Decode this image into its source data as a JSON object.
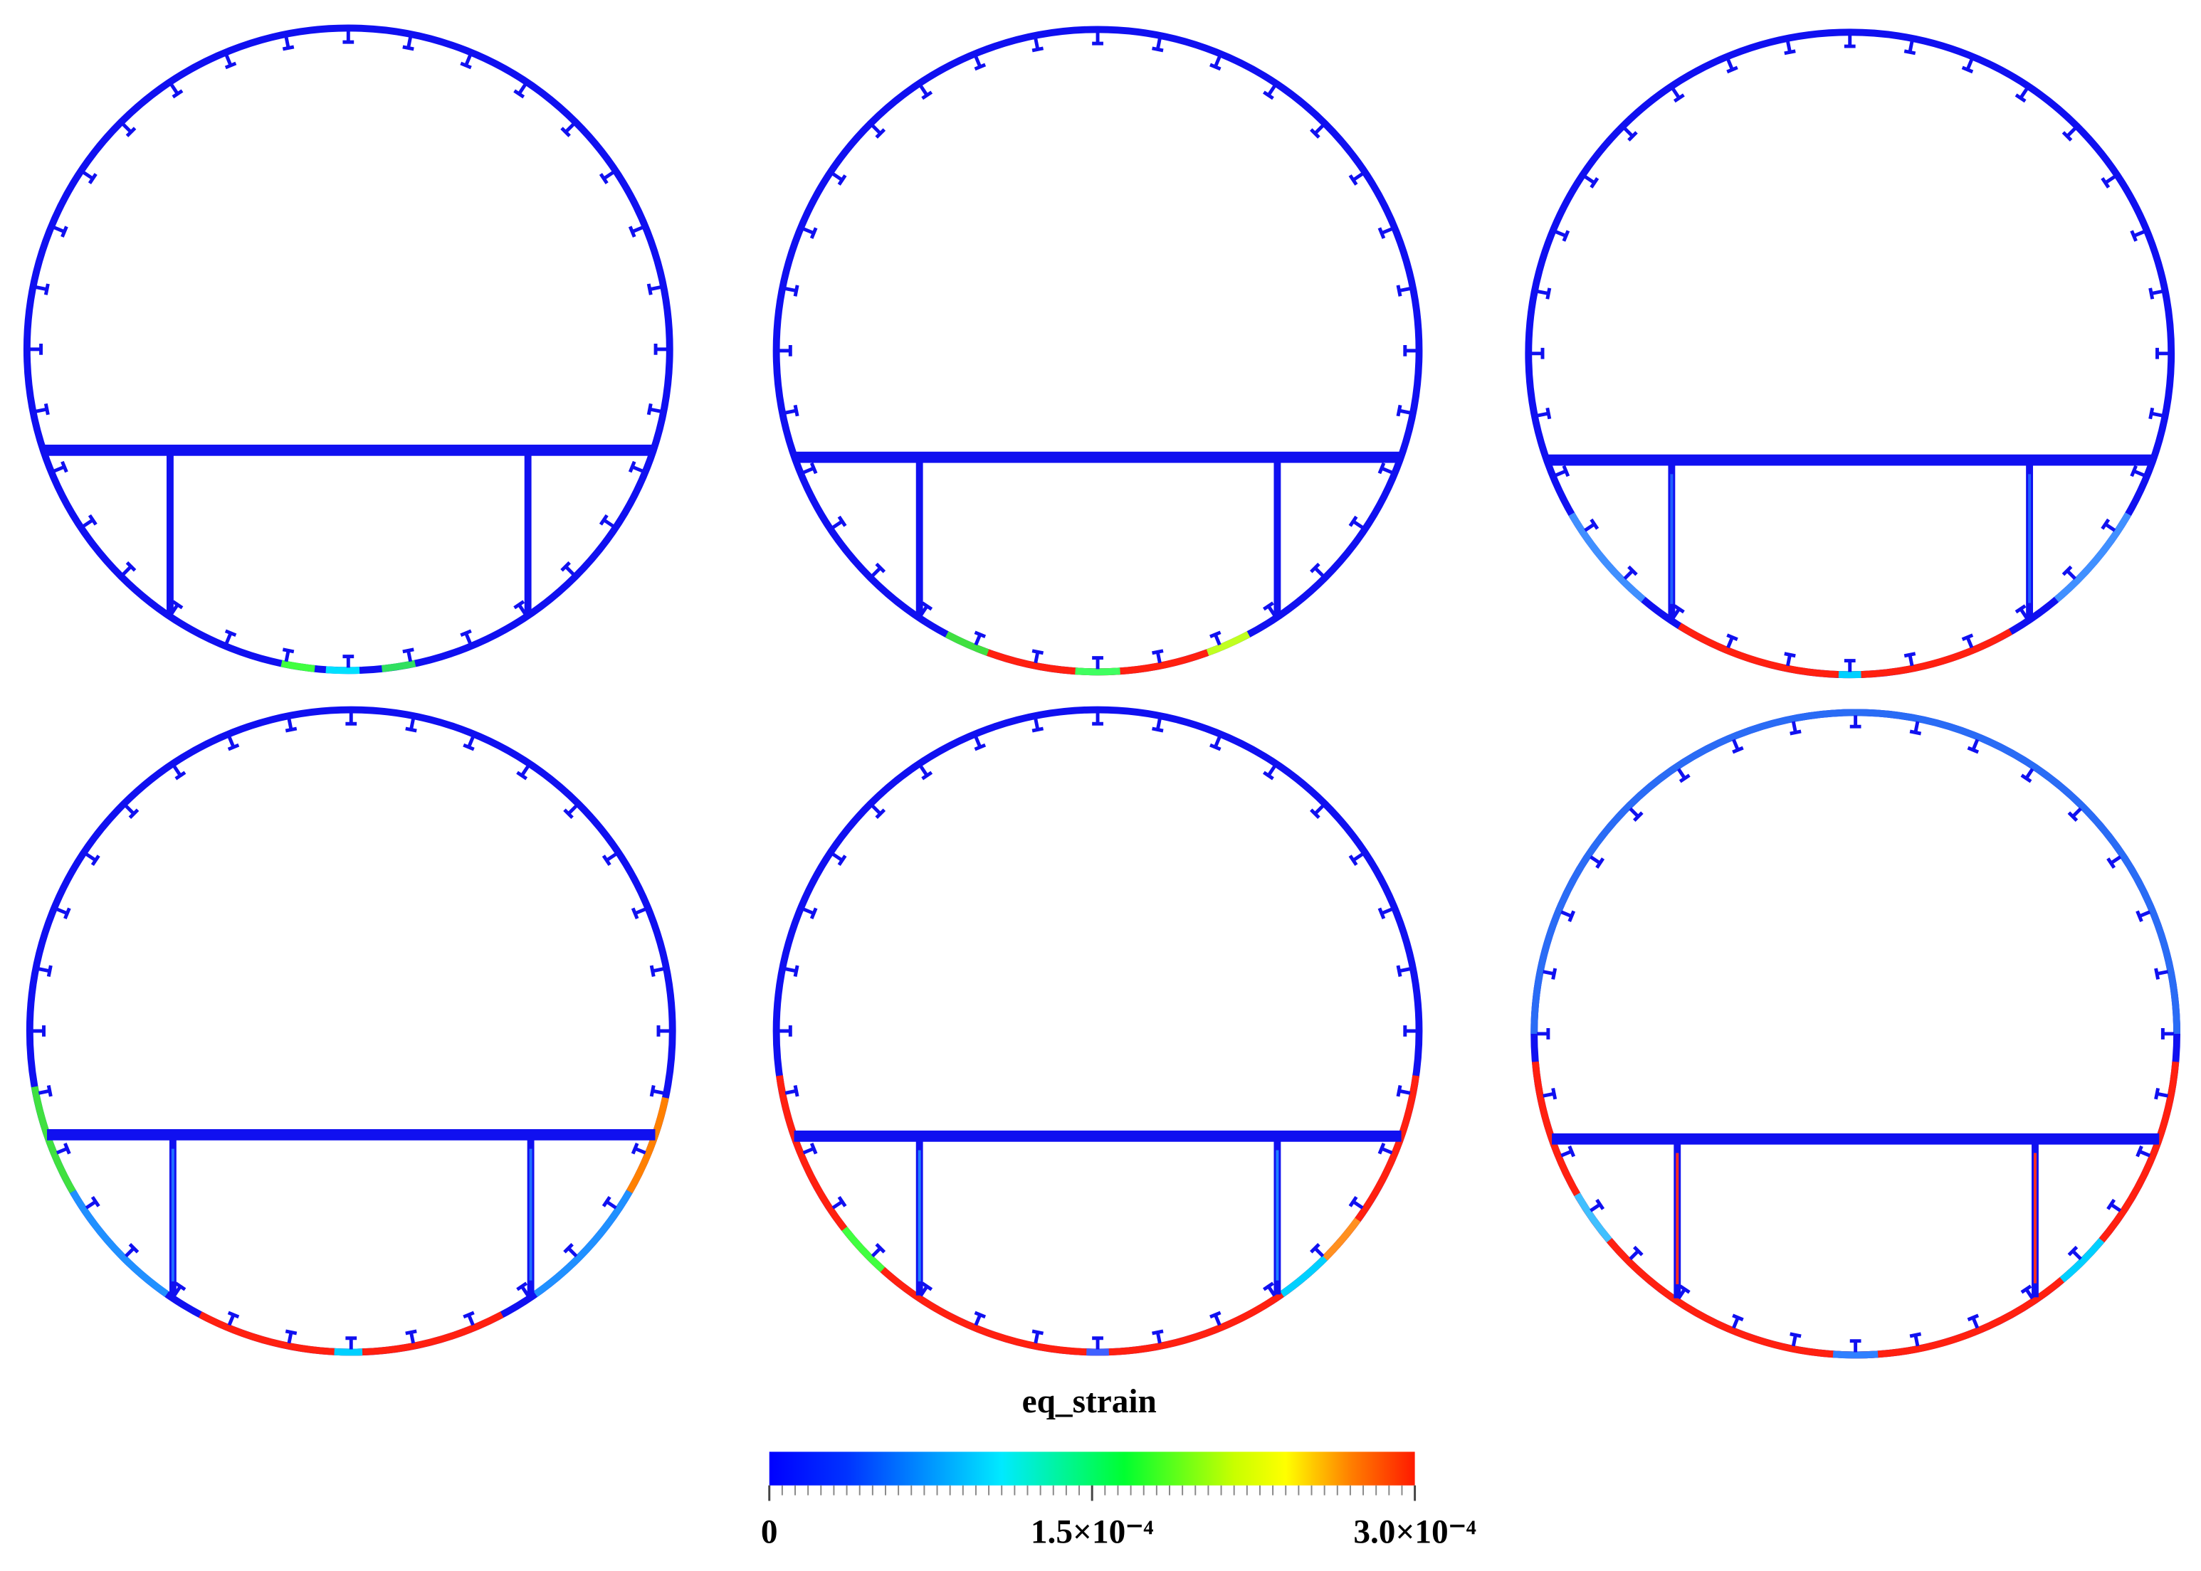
{
  "colorbar": {
    "title": "eq_strain",
    "range": [
      0,
      0.0003
    ],
    "ticks": [
      0,
      {
        "value": 0.00015,
        "label": "1.5×10⁻⁴"
      },
      {
        "value": 0.0003,
        "label": "3.0×10⁻⁴"
      }
    ]
  }
}
